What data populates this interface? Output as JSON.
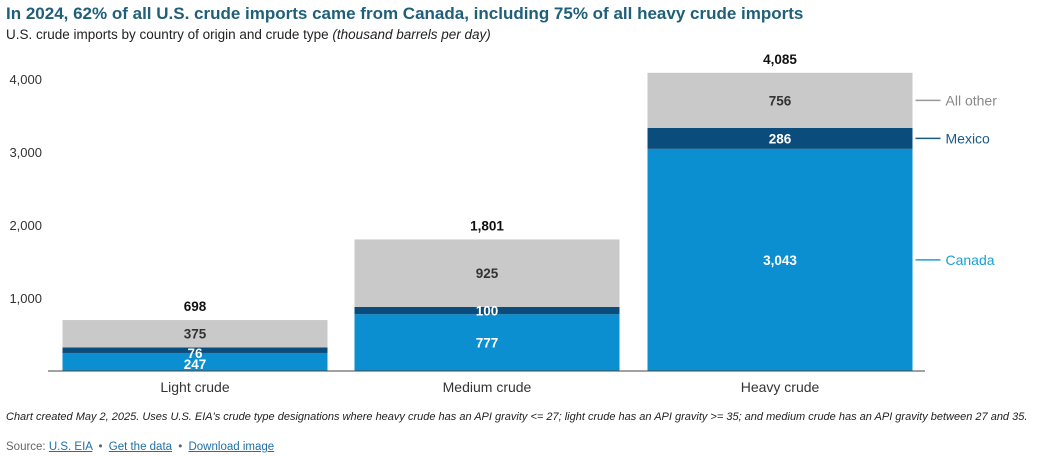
{
  "header": {
    "title": "In 2024, 62% of all U.S. crude imports came from Canada, including 75% of all heavy crude imports",
    "subtitle_main": "U.S. crude imports by country of origin and crude type",
    "subtitle_unit": "(thousand barrels per day)"
  },
  "chart_data": {
    "type": "bar",
    "stacked": true,
    "categories": [
      "Light crude",
      "Medium crude",
      "Heavy crude"
    ],
    "series": [
      {
        "name": "Canada",
        "values": [
          247,
          777,
          3043
        ],
        "color": "#0b8fd1",
        "label_color": "#ffffff"
      },
      {
        "name": "Mexico",
        "values": [
          76,
          100,
          286
        ],
        "color": "#0a4c7c",
        "label_color": "#ffffff"
      },
      {
        "name": "All other",
        "values": [
          375,
          925,
          756
        ],
        "color": "#c9c9c9",
        "label_color": "#333333"
      }
    ],
    "totals": [
      698,
      1801,
      4085
    ],
    "total_labels": [
      "698",
      "1,801",
      "4,085"
    ],
    "value_labels": [
      [
        "247",
        "777",
        "3,043"
      ],
      [
        "76",
        "100",
        "286"
      ],
      [
        "375",
        "925",
        "756"
      ]
    ],
    "legend_colors": [
      "#1aa0da",
      "#1a5a87",
      "#9a9a9a"
    ],
    "ylim": [
      0,
      4000
    ],
    "yticks": [
      1000,
      2000,
      3000,
      4000
    ],
    "ytick_labels": [
      "1,000",
      "2,000",
      "3,000",
      "4,000"
    ],
    "grid": false,
    "legend": "right"
  },
  "footer": {
    "note": "Chart created May 2, 2025. Uses U.S. EIA's crude type designations where heavy crude has an API gravity <= 27; light crude has an API gravity >= 35; and medium crude has an API gravity between 27 and 35.",
    "source_prefix": "Source:",
    "source_link": "U.S. EIA",
    "separator": "•",
    "get_data_link": "Get the data",
    "download_link": "Download image"
  }
}
